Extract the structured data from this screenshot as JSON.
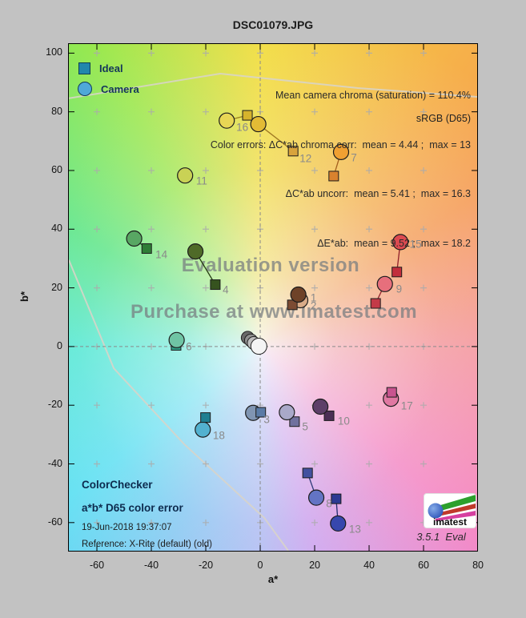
{
  "title": "DSC01079.JPG",
  "legend": {
    "ideal": "Ideal",
    "camera": "Camera"
  },
  "stats": [
    "Mean camera chroma (saturation) = 110.4%",
    "Color errors: ΔC*ab chroma corr:  mean = 4.44 ;  max = 13",
    "ΔC*ab uncorr:  mean = 5.41 ;  max = 16.3",
    "ΔE*ab:  mean = 9.52 ;  max = 18.2"
  ],
  "srgb_label": "sRGB (D65)",
  "watermark": {
    "line1": "Evaluation version",
    "line2": "Purchase at www.imatest.com"
  },
  "footer": {
    "title1": "ColorChecker",
    "title2": "a*b* D65 color error",
    "date": "19-Jun-2018 19:37:07",
    "reference": "Reference: X-Rite (default) (old)"
  },
  "logo": {
    "text": "imatest",
    "version": "3.5.1  Eval"
  },
  "chart_data": {
    "type": "scatter",
    "xlabel": "a*",
    "ylabel": "b*",
    "xlim": [
      -70.3,
      79.7
    ],
    "ylim": [
      -69.6,
      103.1
    ],
    "xticks": [
      -60,
      -40,
      -20,
      0,
      20,
      40,
      60,
      80
    ],
    "yticks": [
      100,
      80,
      60,
      40,
      20,
      0,
      -20,
      -40,
      -60
    ],
    "grid_a": [
      -60,
      -40,
      -20,
      0,
      20,
      40,
      60
    ],
    "grid_b": [
      -60,
      -40,
      -20,
      0,
      20,
      40,
      60,
      80,
      100
    ],
    "zero_lines": true,
    "gamut_lines": [
      [
        [
          -70.3,
          84.6
        ],
        [
          -14.7,
          93.0
        ],
        [
          35.9,
          88.1
        ],
        [
          79.7,
          85.1
        ]
      ],
      [
        [
          -70.3,
          29.5
        ],
        [
          -53.8,
          -7.4
        ],
        [
          -27.9,
          -33.3
        ],
        [
          1.5,
          -58.4
        ],
        [
          10.3,
          -69.6
        ]
      ]
    ],
    "grays": [
      {
        "pos": [
          -4.6,
          3.0
        ],
        "color": "#696969",
        "r": 8
      },
      {
        "pos": [
          -3.4,
          2.1
        ],
        "color": "#8f8f8f",
        "r": 8
      },
      {
        "pos": [
          -2.4,
          1.2
        ],
        "color": "#bdbdbd",
        "r": 8
      },
      {
        "pos": [
          -0.5,
          0.1
        ],
        "color": "#f4f4f4",
        "r": 10
      }
    ],
    "patches": [
      {
        "n": 1,
        "ideal": [
          11.8,
          14.2
        ],
        "camera": [
          14.0,
          17.7
        ],
        "ideal_color": "#7c4b33",
        "camera_color": "#6e4228",
        "line": "#53301f",
        "label": [
          19.6,
          16.5
        ]
      },
      {
        "n": 2,
        "ideal": [
          14.4,
          15.0
        ],
        "camera": [
          14.7,
          15.8
        ],
        "ideal_color": "#d2a385",
        "camera_color": "#d9ab88",
        "line": "#8a6a50",
        "label": [
          19.6,
          14.0
        ]
      },
      {
        "n": 3,
        "ideal": [
          0.2,
          -22.4
        ],
        "camera": [
          -2.6,
          -22.6
        ],
        "ideal_color": "#5a7ba6",
        "camera_color": "#8095b2",
        "line": "#44608c",
        "label": [
          2.4,
          -24.8
        ],
        "square_top": true
      },
      {
        "n": 4,
        "ideal": [
          -16.5,
          21.1
        ],
        "camera": [
          -23.8,
          32.4
        ],
        "ideal_color": "#36531f",
        "camera_color": "#4f6a28",
        "line": "#243a12",
        "label": [
          -12.7,
          19.3
        ]
      },
      {
        "n": 5,
        "ideal": [
          12.6,
          -25.6
        ],
        "camera": [
          9.8,
          -22.4
        ],
        "ideal_color": "#70719e",
        "camera_color": "#a9a9c9",
        "line": "#55567e",
        "label": [
          16.5,
          -27.4
        ]
      },
      {
        "n": 6,
        "ideal": [
          -30.9,
          0.4
        ],
        "camera": [
          -30.7,
          2.2
        ],
        "ideal_color": "#2f9f85",
        "camera_color": "#6fc4a4",
        "line": "#20705c",
        "label": [
          -26.2,
          0.0
        ]
      },
      {
        "n": 7,
        "ideal": [
          27.0,
          58.1
        ],
        "camera": [
          29.7,
          66.3
        ],
        "ideal_color": "#d9822e",
        "camera_color": "#f0a032",
        "line": "#a35f1d",
        "label": [
          34.4,
          64.4
        ]
      },
      {
        "n": 8,
        "ideal": [
          17.4,
          -43.1
        ],
        "camera": [
          20.6,
          -51.5
        ],
        "ideal_color": "#41519f",
        "camera_color": "#6374c4",
        "line": "#2e3a78",
        "label": [
          25.3,
          -53.6
        ]
      },
      {
        "n": 9,
        "ideal": [
          42.4,
          14.7
        ],
        "camera": [
          45.8,
          21.3
        ],
        "ideal_color": "#c43a48",
        "camera_color": "#e76f7c",
        "line": "#93242f",
        "label": [
          51.0,
          19.5
        ]
      },
      {
        "n": 10,
        "ideal": [
          25.3,
          -23.6
        ],
        "camera": [
          22.1,
          -20.5
        ],
        "ideal_color": "#4b2f55",
        "camera_color": "#5d3f68",
        "line": "#33203a",
        "label": [
          30.7,
          -25.4
        ]
      },
      {
        "n": 11,
        "ideal": [
          -27.6,
          58.3
        ],
        "camera": [
          -27.6,
          58.3
        ],
        "ideal_color": "#b5c046",
        "camera_color": "#c9d255",
        "line": "#8f9a32",
        "label": [
          -21.5,
          56.5
        ]
      },
      {
        "n": 12,
        "ideal": [
          12.1,
          66.6
        ],
        "camera": [
          -0.7,
          75.8
        ],
        "ideal_color": "#d8a33c",
        "camera_color": "#e3bb35",
        "line": "#9e7722",
        "label": [
          16.7,
          64.0
        ]
      },
      {
        "n": 13,
        "ideal": [
          27.9,
          -51.9
        ],
        "camera": [
          28.6,
          -60.3
        ],
        "ideal_color": "#2c3a92",
        "camera_color": "#3747ad",
        "line": "#1e2a6e",
        "label": [
          34.8,
          -62.2
        ]
      },
      {
        "n": 14,
        "ideal": [
          -41.7,
          33.4
        ],
        "camera": [
          -46.3,
          36.8
        ],
        "ideal_color": "#2e7d36",
        "camera_color": "#58a763",
        "line": "#1f5a26",
        "label": [
          -36.3,
          31.3
        ]
      },
      {
        "n": 15,
        "ideal": [
          50.2,
          25.4
        ],
        "camera": [
          51.5,
          35.6
        ],
        "ideal_color": "#c22e3c",
        "camera_color": "#dc4a50",
        "line": "#8f1f2a",
        "label": [
          57.1,
          34.9
        ]
      },
      {
        "n": 16,
        "ideal": [
          -4.7,
          78.8
        ],
        "camera": [
          -12.3,
          77.0
        ],
        "ideal_color": "#d6b32c",
        "camera_color": "#e8d655",
        "line": "#9c8220",
        "label": [
          -6.6,
          74.8
        ]
      },
      {
        "n": 17,
        "ideal": [
          48.3,
          -15.6
        ],
        "camera": [
          48.0,
          -17.8
        ],
        "ideal_color": "#c8548f",
        "camera_color": "#e078a2",
        "line": "#96386a",
        "label": [
          53.9,
          -20.1
        ],
        "square_top": true
      },
      {
        "n": 18,
        "ideal": [
          -20.1,
          -24.2
        ],
        "camera": [
          -21.1,
          -28.3
        ],
        "ideal_color": "#1f7f91",
        "camera_color": "#52b1cf",
        "line": "#155e6c",
        "label": [
          -15.2,
          -30.4
        ],
        "square_top": true
      }
    ]
  }
}
